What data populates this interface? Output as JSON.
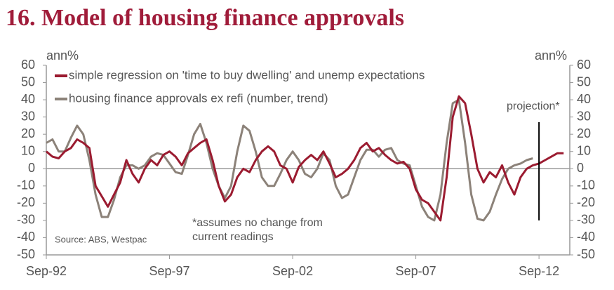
{
  "chart_data": {
    "type": "line",
    "title": "16. Model of housing finance approvals",
    "y_label": "ann%",
    "y2_label": "ann%",
    "annotation": "projection*",
    "note": [
      "*assumes no change from",
      "current readings"
    ],
    "source": "Source: ABS, Westpac",
    "projection_line": {
      "x": 2012.67,
      "y": [
        27,
        -30
      ]
    },
    "xlim": [
      1992.67,
      2013.92
    ],
    "xticks": [
      {
        "value": 1992.67,
        "label": "Sep-92"
      },
      {
        "value": 1997.67,
        "label": "Sep-97"
      },
      {
        "value": 2002.67,
        "label": "Sep-02"
      },
      {
        "value": 2007.67,
        "label": "Sep-07"
      },
      {
        "value": 2012.67,
        "label": "Sep-12"
      }
    ],
    "ylim": [
      -50,
      60
    ],
    "yticks": [
      -50,
      -40,
      -30,
      -20,
      -10,
      0,
      10,
      20,
      30,
      40,
      50,
      60
    ],
    "y2lim": [
      -50,
      60
    ],
    "y2ticks": [
      -50,
      -40,
      -30,
      -20,
      -10,
      0,
      10,
      20,
      30,
      40,
      50,
      60
    ],
    "legend": "top-left",
    "x": [
      1992.67,
      1992.92,
      1993.17,
      1993.42,
      1993.67,
      1993.92,
      1994.17,
      1994.42,
      1994.67,
      1994.92,
      1995.17,
      1995.42,
      1995.67,
      1995.92,
      1996.17,
      1996.42,
      1996.67,
      1996.92,
      1997.17,
      1997.42,
      1997.67,
      1997.92,
      1998.17,
      1998.42,
      1998.67,
      1998.92,
      1999.17,
      1999.42,
      1999.67,
      1999.92,
      2000.17,
      2000.42,
      2000.67,
      2000.92,
      2001.17,
      2001.42,
      2001.67,
      2001.92,
      2002.17,
      2002.42,
      2002.67,
      2002.92,
      2003.17,
      2003.42,
      2003.67,
      2003.92,
      2004.17,
      2004.42,
      2004.67,
      2004.92,
      2005.17,
      2005.42,
      2005.67,
      2005.92,
      2006.17,
      2006.42,
      2006.67,
      2006.92,
      2007.17,
      2007.42,
      2007.67,
      2007.92,
      2008.17,
      2008.42,
      2008.67,
      2008.92,
      2009.17,
      2009.42,
      2009.67,
      2009.92,
      2010.17,
      2010.42,
      2010.67,
      2010.92,
      2011.17,
      2011.42,
      2011.67,
      2011.92,
      2012.17,
      2012.42,
      2012.67,
      2012.92,
      2013.17,
      2013.42,
      2013.67
    ],
    "series": [
      {
        "name": "simple regression on 'time to buy dwelling' and unemp expectations",
        "color": "#9b1b30",
        "values": [
          10,
          7,
          6,
          10,
          12,
          17,
          15,
          12,
          -10,
          -16,
          -22,
          -15,
          -8,
          5,
          -3,
          -8,
          0,
          5,
          2,
          8,
          10,
          7,
          2,
          9,
          12,
          15,
          17,
          5,
          -10,
          -19,
          -15,
          -5,
          0,
          -2,
          5,
          10,
          13,
          10,
          2,
          0,
          -8,
          1,
          5,
          8,
          5,
          10,
          3,
          -5,
          -3,
          0,
          5,
          12,
          15,
          10,
          12,
          8,
          5,
          3,
          4,
          0,
          -12,
          -18,
          -20,
          -25,
          -30,
          -5,
          30,
          42,
          38,
          20,
          0,
          -8,
          -2,
          -5,
          2,
          -8,
          -15,
          -5,
          0,
          2,
          3,
          5,
          7,
          9,
          9
        ]
      },
      {
        "name": "housing finance approvals ex refi (number, trend)",
        "color": "#8c8279",
        "values": [
          15,
          17,
          10,
          10,
          18,
          25,
          20,
          5,
          -15,
          -28,
          -28,
          -18,
          -5,
          2,
          2,
          0,
          2,
          7,
          9,
          8,
          3,
          -2,
          -3,
          8,
          20,
          26,
          15,
          0,
          -10,
          -17,
          -10,
          10,
          25,
          22,
          10,
          -5,
          -10,
          -10,
          -3,
          5,
          10,
          5,
          -3,
          -5,
          0,
          9,
          5,
          -10,
          -17,
          -15,
          -5,
          5,
          11,
          11,
          7,
          11,
          12,
          5,
          3,
          2,
          -10,
          -22,
          -28,
          -30,
          -15,
          15,
          38,
          40,
          15,
          -15,
          -29,
          -30,
          -25,
          -15,
          -6,
          0,
          2,
          3,
          5,
          6,
          null,
          null,
          null,
          null,
          null
        ]
      }
    ]
  }
}
